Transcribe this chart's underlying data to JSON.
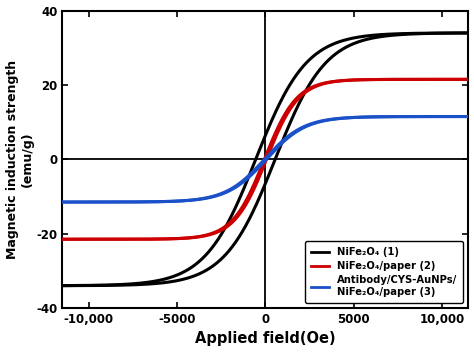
{
  "xlabel": "Applied field(Oe)",
  "ylabel": "Magnetic induction strength\n(emu/g)",
  "xlim": [
    -11500,
    11500
  ],
  "ylim": [
    -40,
    40
  ],
  "xticks": [
    -10000,
    -5000,
    0,
    5000,
    10000
  ],
  "yticks": [
    -40,
    -20,
    0,
    20,
    40
  ],
  "xtick_labels": [
    "-10,000",
    "-5000",
    "0",
    "5000",
    "10,000"
  ],
  "legend": [
    {
      "label": "NiFe₂O₄ (1)",
      "color": "#000000"
    },
    {
      "label": "NiFe₂O₄/paper (2)",
      "color": "#cc0000"
    },
    {
      "label": "Antibody/CYS-AuNPs/\nNiFe₂O₄/paper (3)",
      "color": "#1a50c8"
    }
  ],
  "curves": {
    "black": {
      "Ms": 34.0,
      "Hc": 550,
      "alpha": 0.00035,
      "color": "#000000",
      "lw": 2.2
    },
    "red": {
      "Ms": 21.5,
      "Hc": 60,
      "alpha": 0.00055,
      "color": "#cc0000",
      "lw": 2.2
    },
    "blue": {
      "Ms": 11.5,
      "Hc": 55,
      "alpha": 0.00045,
      "color": "#1a50c8",
      "lw": 2.2
    }
  },
  "background_color": "#ffffff"
}
